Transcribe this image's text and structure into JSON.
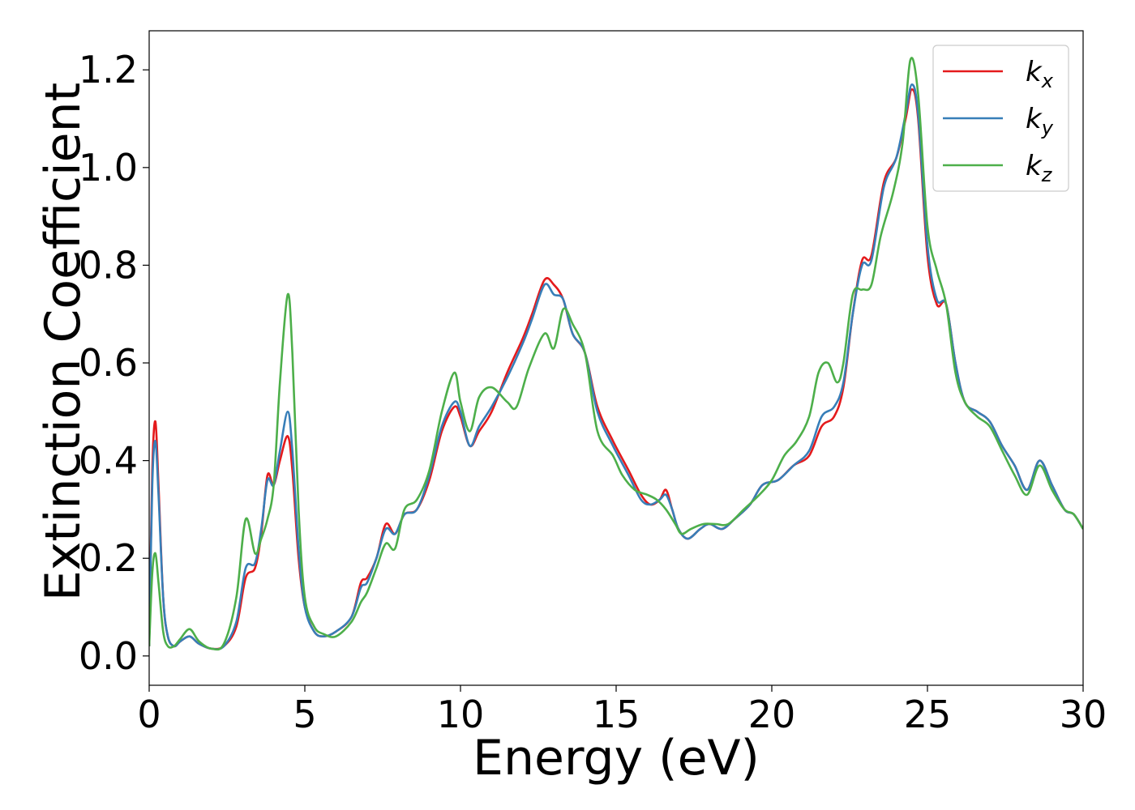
{
  "chart_data": {
    "type": "line",
    "xlabel": "Energy (eV)",
    "ylabel": "Extinction Coefficient",
    "xlim": [
      0,
      30
    ],
    "ylim": [
      -0.06,
      1.28
    ],
    "xticks": [
      0,
      5,
      10,
      15,
      20,
      25,
      30
    ],
    "xtick_labels": [
      "0",
      "5",
      "10",
      "15",
      "20",
      "25",
      "30"
    ],
    "yticks": [
      0.0,
      0.2,
      0.4,
      0.6,
      0.8,
      1.0,
      1.2
    ],
    "ytick_labels": [
      "0.0",
      "0.2",
      "0.4",
      "0.6",
      "0.8",
      "1.0",
      "1.2"
    ],
    "grid": false,
    "legend_position": "top-right",
    "series": [
      {
        "name": "k_x",
        "legend_base": "k",
        "legend_sub": "x",
        "color": "#e41a1c",
        "points": [
          [
            0,
            0.02
          ],
          [
            0.1,
            0.38
          ],
          [
            0.2,
            0.48
          ],
          [
            0.3,
            0.35
          ],
          [
            0.45,
            0.12
          ],
          [
            0.6,
            0.04
          ],
          [
            0.8,
            0.02
          ],
          [
            1.0,
            0.03
          ],
          [
            1.3,
            0.04
          ],
          [
            1.6,
            0.025
          ],
          [
            2.0,
            0.015
          ],
          [
            2.4,
            0.02
          ],
          [
            2.8,
            0.06
          ],
          [
            3.1,
            0.16
          ],
          [
            3.4,
            0.18
          ],
          [
            3.6,
            0.25
          ],
          [
            3.8,
            0.37
          ],
          [
            4.0,
            0.35
          ],
          [
            4.2,
            0.4
          ],
          [
            4.45,
            0.45
          ],
          [
            4.6,
            0.38
          ],
          [
            4.8,
            0.2
          ],
          [
            5.0,
            0.1
          ],
          [
            5.3,
            0.05
          ],
          [
            5.6,
            0.04
          ],
          [
            6.0,
            0.05
          ],
          [
            6.5,
            0.08
          ],
          [
            6.8,
            0.15
          ],
          [
            7.0,
            0.16
          ],
          [
            7.3,
            0.2
          ],
          [
            7.6,
            0.27
          ],
          [
            7.9,
            0.25
          ],
          [
            8.2,
            0.29
          ],
          [
            8.6,
            0.3
          ],
          [
            9.0,
            0.36
          ],
          [
            9.4,
            0.46
          ],
          [
            9.8,
            0.51
          ],
          [
            10.0,
            0.49
          ],
          [
            10.3,
            0.43
          ],
          [
            10.6,
            0.46
          ],
          [
            11.0,
            0.5
          ],
          [
            11.5,
            0.58
          ],
          [
            12.0,
            0.65
          ],
          [
            12.3,
            0.7
          ],
          [
            12.7,
            0.77
          ],
          [
            13.0,
            0.76
          ],
          [
            13.3,
            0.73
          ],
          [
            13.6,
            0.66
          ],
          [
            14.0,
            0.62
          ],
          [
            14.4,
            0.51
          ],
          [
            14.9,
            0.44
          ],
          [
            15.4,
            0.38
          ],
          [
            15.8,
            0.33
          ],
          [
            16.1,
            0.31
          ],
          [
            16.4,
            0.32
          ],
          [
            16.6,
            0.34
          ],
          [
            16.8,
            0.3
          ],
          [
            17.0,
            0.26
          ],
          [
            17.3,
            0.24
          ],
          [
            17.7,
            0.26
          ],
          [
            18.0,
            0.27
          ],
          [
            18.4,
            0.26
          ],
          [
            18.8,
            0.28
          ],
          [
            19.3,
            0.31
          ],
          [
            19.7,
            0.35
          ],
          [
            20.2,
            0.36
          ],
          [
            20.7,
            0.39
          ],
          [
            21.2,
            0.41
          ],
          [
            21.6,
            0.47
          ],
          [
            22.0,
            0.49
          ],
          [
            22.3,
            0.55
          ],
          [
            22.6,
            0.7
          ],
          [
            22.9,
            0.81
          ],
          [
            23.2,
            0.82
          ],
          [
            23.6,
            0.97
          ],
          [
            24.0,
            1.02
          ],
          [
            24.3,
            1.1
          ],
          [
            24.5,
            1.16
          ],
          [
            24.7,
            1.1
          ],
          [
            25.0,
            0.82
          ],
          [
            25.3,
            0.72
          ],
          [
            25.6,
            0.72
          ],
          [
            25.9,
            0.6
          ],
          [
            26.2,
            0.52
          ],
          [
            26.6,
            0.5
          ],
          [
            27.0,
            0.48
          ],
          [
            27.4,
            0.43
          ],
          [
            27.8,
            0.39
          ],
          [
            28.2,
            0.34
          ],
          [
            28.6,
            0.4
          ],
          [
            29.0,
            0.35
          ],
          [
            29.4,
            0.3
          ],
          [
            29.7,
            0.29
          ],
          [
            30.0,
            0.26
          ]
        ]
      },
      {
        "name": "k_y",
        "legend_base": "k",
        "legend_sub": "y",
        "color": "#377eb8",
        "points": [
          [
            0,
            0.02
          ],
          [
            0.1,
            0.35
          ],
          [
            0.2,
            0.44
          ],
          [
            0.3,
            0.33
          ],
          [
            0.45,
            0.12
          ],
          [
            0.6,
            0.04
          ],
          [
            0.8,
            0.02
          ],
          [
            1.0,
            0.03
          ],
          [
            1.3,
            0.04
          ],
          [
            1.6,
            0.025
          ],
          [
            2.0,
            0.015
          ],
          [
            2.4,
            0.02
          ],
          [
            2.8,
            0.07
          ],
          [
            3.1,
            0.18
          ],
          [
            3.4,
            0.19
          ],
          [
            3.6,
            0.26
          ],
          [
            3.8,
            0.36
          ],
          [
            4.0,
            0.35
          ],
          [
            4.2,
            0.42
          ],
          [
            4.45,
            0.5
          ],
          [
            4.6,
            0.42
          ],
          [
            4.8,
            0.22
          ],
          [
            5.0,
            0.1
          ],
          [
            5.3,
            0.05
          ],
          [
            5.6,
            0.04
          ],
          [
            6.0,
            0.05
          ],
          [
            6.5,
            0.08
          ],
          [
            6.8,
            0.14
          ],
          [
            7.0,
            0.15
          ],
          [
            7.3,
            0.2
          ],
          [
            7.6,
            0.26
          ],
          [
            7.9,
            0.25
          ],
          [
            8.2,
            0.29
          ],
          [
            8.6,
            0.3
          ],
          [
            9.0,
            0.37
          ],
          [
            9.4,
            0.47
          ],
          [
            9.8,
            0.52
          ],
          [
            10.0,
            0.5
          ],
          [
            10.3,
            0.43
          ],
          [
            10.6,
            0.47
          ],
          [
            11.0,
            0.51
          ],
          [
            11.5,
            0.57
          ],
          [
            12.0,
            0.64
          ],
          [
            12.3,
            0.69
          ],
          [
            12.7,
            0.76
          ],
          [
            13.0,
            0.74
          ],
          [
            13.3,
            0.73
          ],
          [
            13.6,
            0.66
          ],
          [
            14.0,
            0.62
          ],
          [
            14.4,
            0.5
          ],
          [
            14.9,
            0.43
          ],
          [
            15.4,
            0.37
          ],
          [
            15.8,
            0.32
          ],
          [
            16.1,
            0.31
          ],
          [
            16.4,
            0.32
          ],
          [
            16.6,
            0.33
          ],
          [
            16.8,
            0.3
          ],
          [
            17.0,
            0.26
          ],
          [
            17.3,
            0.24
          ],
          [
            17.7,
            0.26
          ],
          [
            18.0,
            0.27
          ],
          [
            18.4,
            0.26
          ],
          [
            18.8,
            0.28
          ],
          [
            19.3,
            0.31
          ],
          [
            19.7,
            0.35
          ],
          [
            20.2,
            0.36
          ],
          [
            20.7,
            0.39
          ],
          [
            21.2,
            0.42
          ],
          [
            21.6,
            0.49
          ],
          [
            22.0,
            0.51
          ],
          [
            22.3,
            0.56
          ],
          [
            22.6,
            0.7
          ],
          [
            22.9,
            0.8
          ],
          [
            23.2,
            0.81
          ],
          [
            23.6,
            0.96
          ],
          [
            24.0,
            1.02
          ],
          [
            24.3,
            1.11
          ],
          [
            24.5,
            1.17
          ],
          [
            24.7,
            1.11
          ],
          [
            25.0,
            0.84
          ],
          [
            25.3,
            0.73
          ],
          [
            25.6,
            0.72
          ],
          [
            25.9,
            0.6
          ],
          [
            26.2,
            0.52
          ],
          [
            26.6,
            0.5
          ],
          [
            27.0,
            0.48
          ],
          [
            27.4,
            0.43
          ],
          [
            27.8,
            0.39
          ],
          [
            28.2,
            0.34
          ],
          [
            28.6,
            0.4
          ],
          [
            29.0,
            0.35
          ],
          [
            29.4,
            0.3
          ],
          [
            29.7,
            0.29
          ],
          [
            30.0,
            0.26
          ]
        ]
      },
      {
        "name": "k_z",
        "legend_base": "k",
        "legend_sub": "z",
        "color": "#4daf4a",
        "points": [
          [
            0,
            0.02
          ],
          [
            0.1,
            0.17
          ],
          [
            0.2,
            0.21
          ],
          [
            0.3,
            0.15
          ],
          [
            0.45,
            0.05
          ],
          [
            0.6,
            0.02
          ],
          [
            0.8,
            0.02
          ],
          [
            1.0,
            0.035
          ],
          [
            1.3,
            0.055
          ],
          [
            1.6,
            0.03
          ],
          [
            2.0,
            0.015
          ],
          [
            2.4,
            0.025
          ],
          [
            2.8,
            0.12
          ],
          [
            3.1,
            0.28
          ],
          [
            3.4,
            0.21
          ],
          [
            3.6,
            0.24
          ],
          [
            3.8,
            0.28
          ],
          [
            4.0,
            0.35
          ],
          [
            4.2,
            0.56
          ],
          [
            4.45,
            0.74
          ],
          [
            4.6,
            0.62
          ],
          [
            4.8,
            0.3
          ],
          [
            5.0,
            0.12
          ],
          [
            5.3,
            0.06
          ],
          [
            5.6,
            0.045
          ],
          [
            6.0,
            0.04
          ],
          [
            6.5,
            0.07
          ],
          [
            6.8,
            0.11
          ],
          [
            7.0,
            0.13
          ],
          [
            7.3,
            0.18
          ],
          [
            7.6,
            0.23
          ],
          [
            7.9,
            0.22
          ],
          [
            8.2,
            0.3
          ],
          [
            8.6,
            0.32
          ],
          [
            9.0,
            0.38
          ],
          [
            9.4,
            0.5
          ],
          [
            9.8,
            0.58
          ],
          [
            10.0,
            0.52
          ],
          [
            10.3,
            0.46
          ],
          [
            10.6,
            0.53
          ],
          [
            11.0,
            0.55
          ],
          [
            11.5,
            0.52
          ],
          [
            11.8,
            0.51
          ],
          [
            12.2,
            0.59
          ],
          [
            12.7,
            0.66
          ],
          [
            13.0,
            0.63
          ],
          [
            13.3,
            0.71
          ],
          [
            13.6,
            0.68
          ],
          [
            14.0,
            0.62
          ],
          [
            14.4,
            0.46
          ],
          [
            14.9,
            0.41
          ],
          [
            15.2,
            0.37
          ],
          [
            15.6,
            0.34
          ],
          [
            16.0,
            0.33
          ],
          [
            16.3,
            0.32
          ],
          [
            16.6,
            0.3
          ],
          [
            16.9,
            0.27
          ],
          [
            17.1,
            0.25
          ],
          [
            17.4,
            0.26
          ],
          [
            17.8,
            0.27
          ],
          [
            18.2,
            0.27
          ],
          [
            18.6,
            0.27
          ],
          [
            19.1,
            0.3
          ],
          [
            19.6,
            0.33
          ],
          [
            20.0,
            0.36
          ],
          [
            20.4,
            0.41
          ],
          [
            20.8,
            0.44
          ],
          [
            21.2,
            0.49
          ],
          [
            21.5,
            0.58
          ],
          [
            21.8,
            0.6
          ],
          [
            22.1,
            0.56
          ],
          [
            22.3,
            0.6
          ],
          [
            22.6,
            0.74
          ],
          [
            22.9,
            0.75
          ],
          [
            23.2,
            0.76
          ],
          [
            23.5,
            0.86
          ],
          [
            23.9,
            0.95
          ],
          [
            24.2,
            1.05
          ],
          [
            24.45,
            1.22
          ],
          [
            24.7,
            1.15
          ],
          [
            25.0,
            0.88
          ],
          [
            25.3,
            0.79
          ],
          [
            25.6,
            0.72
          ],
          [
            25.9,
            0.58
          ],
          [
            26.2,
            0.52
          ],
          [
            26.6,
            0.49
          ],
          [
            27.0,
            0.47
          ],
          [
            27.4,
            0.42
          ],
          [
            27.8,
            0.37
          ],
          [
            28.2,
            0.33
          ],
          [
            28.6,
            0.39
          ],
          [
            29.0,
            0.34
          ],
          [
            29.4,
            0.3
          ],
          [
            29.7,
            0.29
          ],
          [
            30.0,
            0.26
          ]
        ]
      }
    ]
  }
}
